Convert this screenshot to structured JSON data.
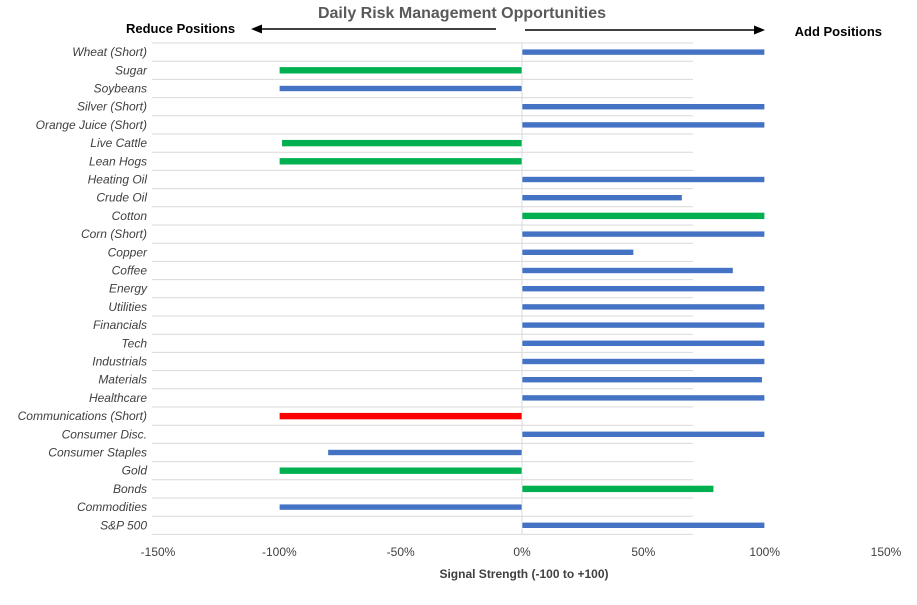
{
  "chart_data": {
    "type": "bar",
    "orientation": "horizontal",
    "title": "Daily Risk Management Opportunities",
    "left_annotation": "Reduce Positions",
    "right_annotation": "Add Positions",
    "xlabel": "Signal Strength (-100 to +100)",
    "ylabel": "",
    "xlim": [
      -150,
      150
    ],
    "x_ticks": [
      "-150%",
      "-100%",
      "-50%",
      "0%",
      "50%",
      "100%",
      "150%"
    ],
    "tick_values": [
      -150,
      -100,
      -50,
      0,
      50,
      100,
      150
    ],
    "grid": true,
    "legend": "none",
    "colors": {
      "blue": "#4472c4",
      "green": "#00b050",
      "red": "#ff0000"
    },
    "bars": [
      {
        "category": "Wheat (Short)",
        "value": 100,
        "color": "blue"
      },
      {
        "category": "Sugar",
        "value": -100,
        "color": "green"
      },
      {
        "category": "Soybeans",
        "value": -100,
        "color": "blue"
      },
      {
        "category": "Silver (Short)",
        "value": 100,
        "color": "blue"
      },
      {
        "category": "Orange Juice (Short)",
        "value": 100,
        "color": "blue"
      },
      {
        "category": "Live Cattle",
        "value": -99,
        "color": "green"
      },
      {
        "category": "Lean Hogs",
        "value": -100,
        "color": "green"
      },
      {
        "category": "Heating Oil",
        "value": 100,
        "color": "blue"
      },
      {
        "category": "Crude Oil",
        "value": 66,
        "color": "blue"
      },
      {
        "category": "Cotton",
        "value": 100,
        "color": "green"
      },
      {
        "category": "Corn (Short)",
        "value": 100,
        "color": "blue"
      },
      {
        "category": "Copper",
        "value": 46,
        "color": "blue"
      },
      {
        "category": "Coffee",
        "value": 87,
        "color": "blue"
      },
      {
        "category": "Energy",
        "value": 100,
        "color": "blue"
      },
      {
        "category": "Utilities",
        "value": 100,
        "color": "blue"
      },
      {
        "category": "Financials",
        "value": 100,
        "color": "blue"
      },
      {
        "category": "Tech",
        "value": 100,
        "color": "blue"
      },
      {
        "category": "Industrials",
        "value": 100,
        "color": "blue"
      },
      {
        "category": "Materials",
        "value": 99,
        "color": "blue"
      },
      {
        "category": "Healthcare",
        "value": 100,
        "color": "blue"
      },
      {
        "category": "Communications (Short)",
        "value": -100,
        "color": "red"
      },
      {
        "category": "Consumer Disc.",
        "value": 100,
        "color": "blue"
      },
      {
        "category": "Consumer Staples",
        "value": -80,
        "color": "blue"
      },
      {
        "category": "Gold",
        "value": -100,
        "color": "green"
      },
      {
        "category": "Bonds",
        "value": 79,
        "color": "green"
      },
      {
        "category": "Commodities",
        "value": -100,
        "color": "blue"
      },
      {
        "category": "S&P 500",
        "value": 100,
        "color": "blue"
      }
    ]
  }
}
